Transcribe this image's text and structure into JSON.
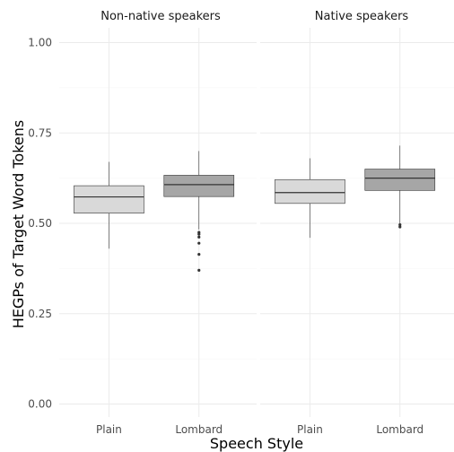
{
  "chart_data": {
    "type": "boxplot",
    "xlabel": "Speech Style",
    "ylabel": "HEGPs of Target Word Tokens",
    "ylim": [
      0,
      1
    ],
    "yticks": [
      0.0,
      0.25,
      0.5,
      0.75,
      1.0
    ],
    "ytick_labels": [
      "0.00",
      "0.25",
      "0.50",
      "0.75",
      "1.00"
    ],
    "categories": [
      "Plain",
      "Lombard"
    ],
    "grid": true,
    "colors": {
      "Plain": "#d9d9d9",
      "Lombard": "#a6a6a6"
    },
    "panels": [
      {
        "title": "Non-native speakers",
        "boxes": [
          {
            "category": "Plain",
            "lower_whisker": 0.43,
            "q1": 0.528,
            "median": 0.573,
            "q3": 0.604,
            "upper_whisker": 0.67,
            "outliers": []
          },
          {
            "category": "Lombard",
            "lower_whisker": 0.483,
            "q1": 0.574,
            "median": 0.607,
            "q3": 0.633,
            "upper_whisker": 0.7,
            "outliers": [
              0.475,
              0.47,
              0.462,
              0.445,
              0.414,
              0.37
            ]
          }
        ]
      },
      {
        "title": "Native speakers",
        "boxes": [
          {
            "category": "Plain",
            "lower_whisker": 0.46,
            "q1": 0.555,
            "median": 0.585,
            "q3": 0.621,
            "upper_whisker": 0.68,
            "outliers": []
          },
          {
            "category": "Lombard",
            "lower_whisker": 0.5,
            "q1": 0.591,
            "median": 0.625,
            "q3": 0.65,
            "upper_whisker": 0.715,
            "outliers": [
              0.496,
              0.49
            ]
          }
        ]
      }
    ]
  }
}
